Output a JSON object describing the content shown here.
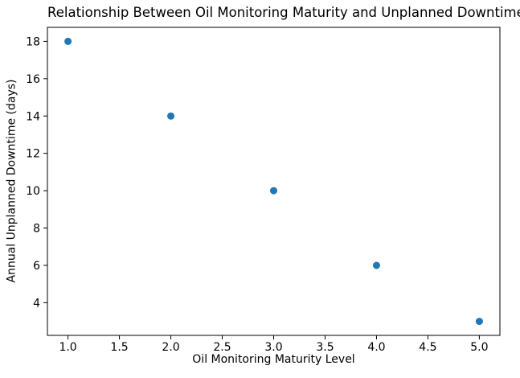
{
  "chart_data": {
    "type": "scatter",
    "title": "Relationship Between Oil Monitoring Maturity and Unplanned Downtime",
    "xlabel": "Oil Monitoring Maturity Level",
    "ylabel": "Annual Unplanned Downtime (days)",
    "x": [
      1,
      2,
      3,
      4,
      5
    ],
    "y": [
      18,
      14,
      10,
      6,
      3
    ],
    "points": [
      {
        "maturity_level": 1,
        "downtime_days": 18
      },
      {
        "maturity_level": 2,
        "downtime_days": 14
      },
      {
        "maturity_level": 3,
        "downtime_days": 10
      },
      {
        "maturity_level": 4,
        "downtime_days": 6
      },
      {
        "maturity_level": 5,
        "downtime_days": 3
      }
    ],
    "xlim": [
      0.8,
      5.2
    ],
    "ylim": [
      2.25,
      18.75
    ],
    "xticks": [
      1.0,
      1.5,
      2.0,
      2.5,
      3.0,
      3.5,
      4.0,
      4.5,
      5.0
    ],
    "xtick_labels": [
      "1.0",
      "1.5",
      "2.0",
      "2.5",
      "3.0",
      "3.5",
      "4.0",
      "4.5",
      "5.0"
    ],
    "yticks": [
      4,
      6,
      8,
      10,
      12,
      14,
      16,
      18
    ],
    "ytick_labels": [
      "4",
      "6",
      "8",
      "10",
      "12",
      "14",
      "16",
      "18"
    ],
    "marker_color": "#1f77b4",
    "spine_color": "#000000",
    "grid": false,
    "legend_position": null
  }
}
